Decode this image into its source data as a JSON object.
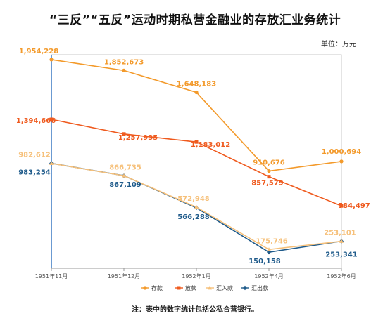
{
  "title": "“三反”“五反”运动时期私营金融业的存放汇业务统计",
  "unit_label": "单位：万元",
  "note": "注：表中的数字统计包括公私合营银行。",
  "chart_data": {
    "type": "line",
    "categories": [
      "1951年11月",
      "1951年12月",
      "1952年1月",
      "1952年4月",
      "1952年6月"
    ],
    "ylim": [
      0,
      2000000
    ],
    "grid": false,
    "legend_position": "bottom",
    "series": [
      {
        "name": "存款",
        "color": "#f39a2b",
        "marker": "circle",
        "values": [
          1954228,
          1852673,
          1648183,
          910676,
          1000694
        ],
        "labels": [
          "1,954,228",
          "1,852,673",
          "1,648,183",
          "910,676",
          "1,000,694"
        ]
      },
      {
        "name": "放款",
        "color": "#ef5a1e",
        "marker": "square",
        "values": [
          1394666,
          1257935,
          1183012,
          857579,
          584497
        ],
        "labels": [
          "1,394,666",
          "1,257,935",
          "1,183,012",
          "857,579",
          "584,497"
        ]
      },
      {
        "name": "汇入款",
        "color": "#f6c07a",
        "marker": "triangle",
        "values": [
          982612,
          866735,
          572948,
          175746,
          253101
        ],
        "labels": [
          "982,612",
          "866,735",
          "572,948",
          "175,746",
          "253,101"
        ]
      },
      {
        "name": "汇出款",
        "color": "#1e5a8a",
        "marker": "diamond",
        "values": [
          983254,
          867109,
          566288,
          150158,
          253341
        ],
        "labels": [
          "983,254",
          "867,109",
          "566,288",
          "150,158",
          "253,341"
        ]
      }
    ]
  }
}
